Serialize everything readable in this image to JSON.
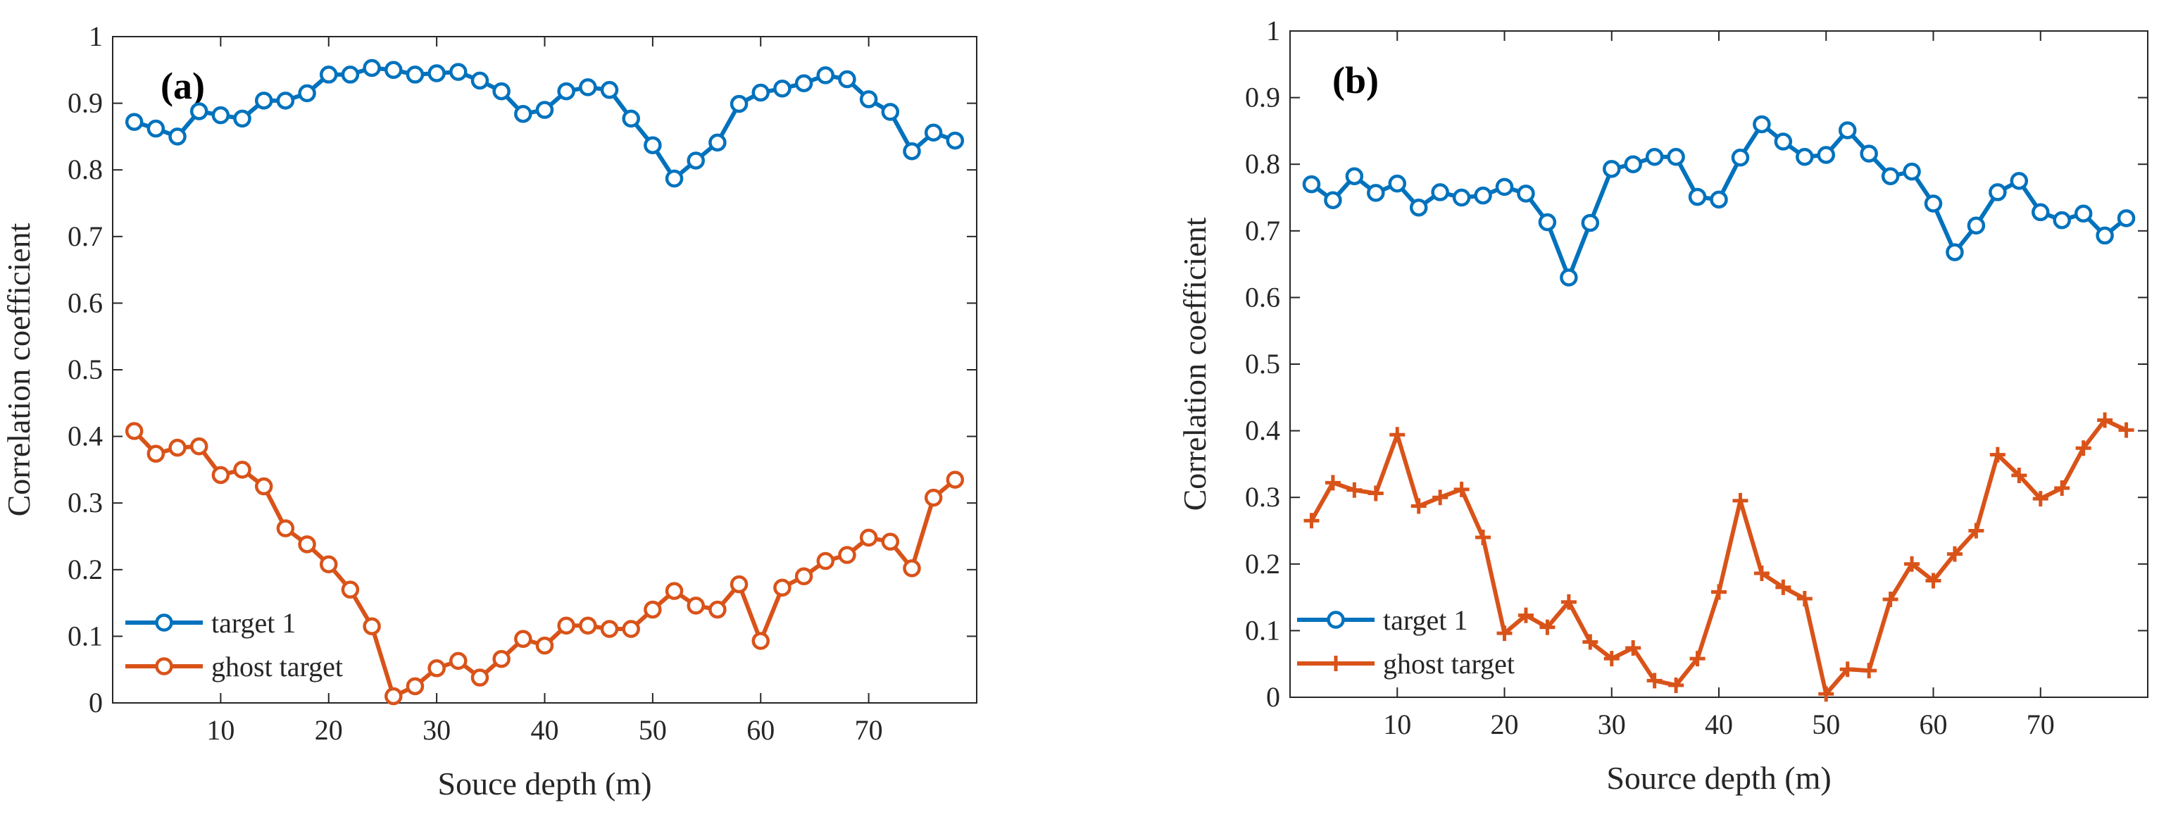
{
  "chart_data": [
    {
      "type": "line",
      "panel_label": "(a)",
      "xlabel": "Souce depth (m)",
      "ylabel": "Correlation coefficient",
      "xlim": [
        0,
        80
      ],
      "ylim": [
        0,
        1
      ],
      "xticks": [
        10,
        20,
        30,
        40,
        50,
        60,
        70
      ],
      "xtick_labels": [
        "10",
        "20",
        "30",
        "40",
        "50",
        "60",
        "70"
      ],
      "yticks": [
        0,
        0.1,
        0.2,
        0.3,
        0.4,
        0.5,
        0.6,
        0.7,
        0.8,
        0.9,
        1
      ],
      "ytick_labels": [
        "0",
        "0.1",
        "0.2",
        "0.3",
        "0.4",
        "0.5",
        "0.6",
        "0.7",
        "0.8",
        "0.9",
        "1"
      ],
      "grid": false,
      "legend_position": "bottom-left",
      "x": [
        2,
        4,
        6,
        8,
        10,
        12,
        14,
        16,
        18,
        20,
        22,
        24,
        26,
        28,
        30,
        32,
        34,
        36,
        38,
        40,
        42,
        44,
        46,
        48,
        50,
        52,
        54,
        56,
        58,
        60,
        62,
        64,
        66,
        68,
        70,
        72,
        74,
        76,
        78
      ],
      "series": [
        {
          "name": "target 1",
          "color": "#0072BD",
          "marker": "circle",
          "values": [
            0.872,
            0.862,
            0.85,
            0.888,
            0.882,
            0.877,
            0.904,
            0.904,
            0.915,
            0.943,
            0.943,
            0.953,
            0.95,
            0.943,
            0.945,
            0.947,
            0.934,
            0.918,
            0.884,
            0.89,
            0.918,
            0.924,
            0.92,
            0.877,
            0.837,
            0.787,
            0.814,
            0.841,
            0.899,
            0.916,
            0.922,
            0.93,
            0.942,
            0.936,
            0.906,
            0.887,
            0.828,
            0.856,
            0.844
          ]
        },
        {
          "name": "ghost target",
          "color": "#D95319",
          "marker": "circle",
          "values": [
            0.408,
            0.374,
            0.383,
            0.385,
            0.342,
            0.35,
            0.325,
            0.262,
            0.238,
            0.208,
            0.17,
            0.115,
            0.01,
            0.025,
            0.052,
            0.063,
            0.038,
            0.066,
            0.096,
            0.086,
            0.116,
            0.116,
            0.111,
            0.111,
            0.14,
            0.168,
            0.146,
            0.14,
            0.178,
            0.093,
            0.173,
            0.19,
            0.213,
            0.222,
            0.248,
            0.242,
            0.202,
            0.308,
            0.335
          ]
        }
      ]
    },
    {
      "type": "line",
      "panel_label": "(b)",
      "xlabel": "Source depth (m)",
      "ylabel": "Correlation coefficient",
      "xlim": [
        0,
        80
      ],
      "ylim": [
        0,
        1
      ],
      "xticks": [
        10,
        20,
        30,
        40,
        50,
        60,
        70
      ],
      "xtick_labels": [
        "10",
        "20",
        "30",
        "40",
        "50",
        "60",
        "70"
      ],
      "yticks": [
        0,
        0.1,
        0.2,
        0.3,
        0.4,
        0.5,
        0.6,
        0.7,
        0.8,
        0.9,
        1
      ],
      "ytick_labels": [
        "0",
        "0.1",
        "0.2",
        "0.3",
        "0.4",
        "0.5",
        "0.6",
        "0.7",
        "0.8",
        "0.9",
        "1"
      ],
      "grid": false,
      "legend_position": "bottom-left",
      "x": [
        2,
        4,
        6,
        8,
        10,
        12,
        14,
        16,
        18,
        20,
        22,
        24,
        26,
        28,
        30,
        32,
        34,
        36,
        38,
        40,
        42,
        44,
        46,
        48,
        50,
        52,
        54,
        56,
        58,
        60,
        62,
        64,
        66,
        68,
        70,
        72,
        74,
        76,
        78
      ],
      "series": [
        {
          "name": "target 1",
          "color": "#0072BD",
          "marker": "circle",
          "values": [
            0.77,
            0.746,
            0.782,
            0.757,
            0.771,
            0.735,
            0.758,
            0.75,
            0.753,
            0.766,
            0.756,
            0.713,
            0.63,
            0.712,
            0.793,
            0.8,
            0.811,
            0.811,
            0.751,
            0.747,
            0.81,
            0.86,
            0.834,
            0.811,
            0.814,
            0.851,
            0.816,
            0.782,
            0.789,
            0.741,
            0.668,
            0.708,
            0.758,
            0.775,
            0.728,
            0.716,
            0.726,
            0.693,
            0.719
          ]
        },
        {
          "name": "ghost target",
          "color": "#D95319",
          "marker": "plus",
          "values": [
            0.265,
            0.322,
            0.311,
            0.306,
            0.394,
            0.287,
            0.3,
            0.312,
            0.24,
            0.096,
            0.123,
            0.105,
            0.143,
            0.083,
            0.058,
            0.074,
            0.025,
            0.018,
            0.058,
            0.158,
            0.295,
            0.186,
            0.165,
            0.148,
            0.005,
            0.042,
            0.04,
            0.147,
            0.2,
            0.175,
            0.215,
            0.25,
            0.364,
            0.333,
            0.298,
            0.314,
            0.374,
            0.416,
            0.401
          ]
        }
      ]
    }
  ]
}
